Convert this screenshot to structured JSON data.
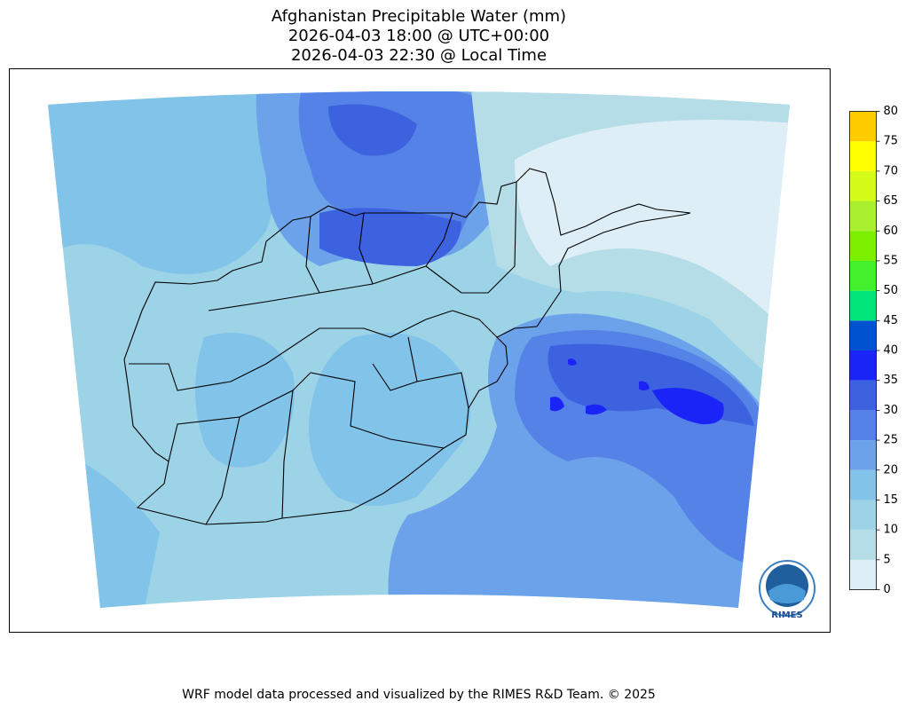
{
  "map": {
    "title": [
      "Afghanistan Precipitable Water (mm)",
      "2026-04-03 18:00 @ UTC+00:00",
      "2026-04-03 22:30 @ Local Time"
    ],
    "colorbar": {
      "levels": [
        0,
        5,
        10,
        15,
        20,
        25,
        30,
        35,
        40,
        45,
        50,
        55,
        60,
        65,
        70,
        75,
        80
      ],
      "colors": [
        "#ddeef6",
        "#b4dde8",
        "#9dd3e7",
        "#82c3e9",
        "#6ba2ea",
        "#5482e6",
        "#3c62e0",
        "#1a24f6",
        "#0052d0",
        "#00e47a",
        "#44f02c",
        "#7cf000",
        "#a8f030",
        "#d4fc18",
        "#ffff00",
        "#ffcc00"
      ]
    },
    "logo": "RIMES",
    "footer": "WRF model data processed and visualized by the RIMES R&D Team. © 2025"
  }
}
